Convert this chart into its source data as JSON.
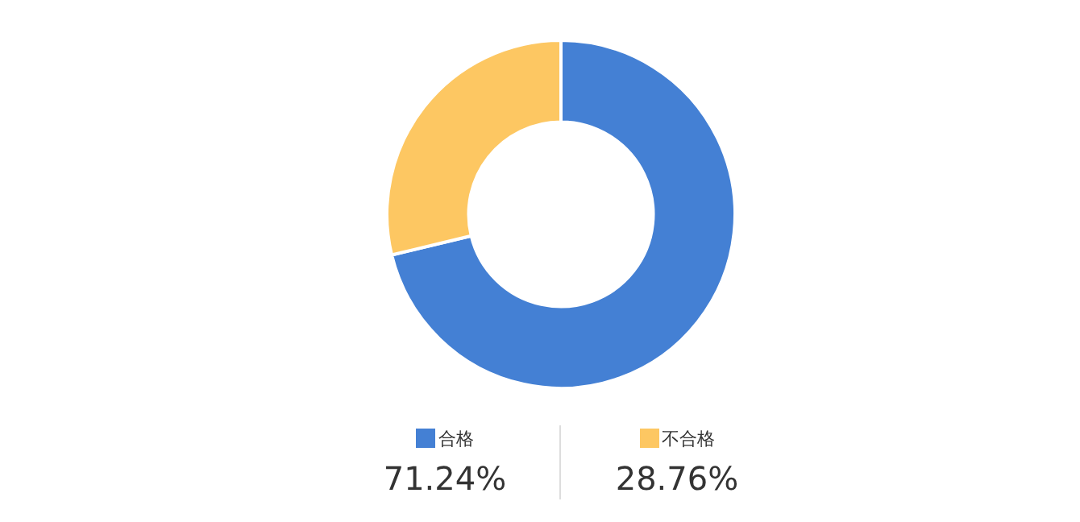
{
  "chart_data": {
    "type": "donut",
    "categories": [
      "合格",
      "不合格"
    ],
    "values": [
      71.24,
      28.76
    ],
    "colors": [
      "#4480d4",
      "#fdc762"
    ],
    "value_labels": [
      "71.24%",
      "28.76%"
    ],
    "legend": "bottom"
  }
}
